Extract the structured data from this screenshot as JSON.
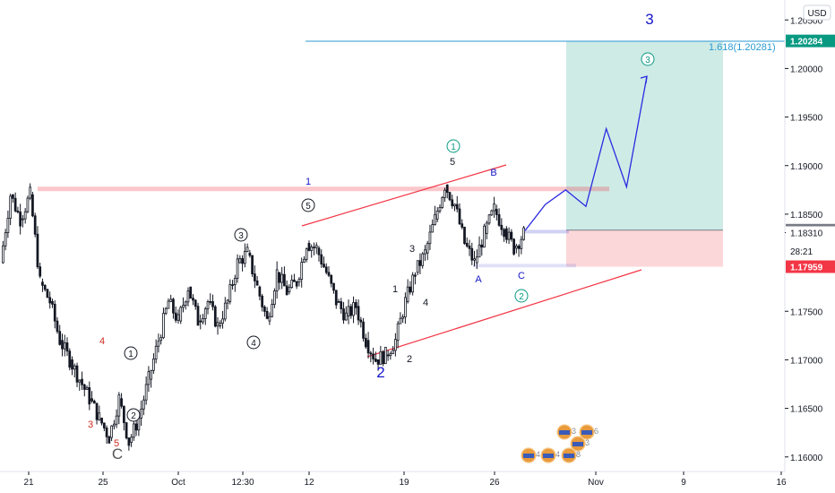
{
  "currency": "USD",
  "chart_data": {
    "type": "candlestick",
    "ylim": [
      1.1585,
      1.2065
    ],
    "x_ticks": [
      "21",
      "25",
      "Oct",
      "12:30",
      "12",
      "19",
      "26",
      "Nov",
      "9",
      "16"
    ],
    "y_ticks": [
      "1.20500",
      "1.20000",
      "1.19500",
      "1.19000",
      "1.18500",
      "1.18310",
      "1.17500",
      "1.17000",
      "1.16500",
      "1.16000"
    ],
    "price_tags": [
      {
        "label": "1.20284",
        "value": 1.20284,
        "color": "#089981"
      },
      {
        "label": "1.18335",
        "value": 1.18335,
        "color": "#787b86"
      },
      {
        "label": "1.18310",
        "value": 1.1831,
        "color": "#ffffff"
      },
      {
        "label": "28:21",
        "value": 1.1812,
        "color": "#ffffff"
      },
      {
        "label": "1.17959",
        "value": 1.17959,
        "color": "#f23645"
      }
    ],
    "fib_label": "1.618(1.20281)",
    "fib_value": 1.20281,
    "resistance_level": 1.1876,
    "target_zone": {
      "top": 1.20284,
      "entry": 1.18335,
      "stop": 1.17959
    },
    "ohlc_path": [
      [
        1.18,
        1.187
      ],
      [
        1.187,
        1.1845
      ],
      [
        1.1845,
        1.187
      ],
      [
        1.187,
        1.178
      ],
      [
        1.178,
        1.176
      ],
      [
        1.176,
        1.172
      ],
      [
        1.172,
        1.17
      ],
      [
        1.17,
        1.168
      ],
      [
        1.168,
        1.166
      ],
      [
        1.166,
        1.164
      ],
      [
        1.164,
        1.162
      ],
      [
        1.162,
        1.166
      ],
      [
        1.166,
        1.1615
      ],
      [
        1.1615,
        1.164
      ],
      [
        1.164,
        1.168
      ],
      [
        1.168,
        1.172
      ],
      [
        1.172,
        1.176
      ],
      [
        1.176,
        1.174
      ],
      [
        1.174,
        1.1775
      ],
      [
        1.1775,
        1.174
      ],
      [
        1.174,
        1.176
      ],
      [
        1.176,
        1.1735
      ],
      [
        1.1735,
        1.176
      ],
      [
        1.176,
        1.18
      ],
      [
        1.18,
        1.181
      ],
      [
        1.181,
        1.1775
      ],
      [
        1.1775,
        1.174
      ],
      [
        1.174,
        1.179
      ],
      [
        1.179,
        1.177
      ],
      [
        1.177,
        1.178
      ],
      [
        1.178,
        1.182
      ],
      [
        1.182,
        1.1815
      ],
      [
        1.1815,
        1.179
      ],
      [
        1.179,
        1.176
      ],
      [
        1.176,
        1.1745
      ],
      [
        1.1745,
        1.1755
      ],
      [
        1.1755,
        1.172
      ],
      [
        1.172,
        1.17
      ],
      [
        1.17,
        1.1705
      ],
      [
        1.1705,
        1.172
      ],
      [
        1.172,
        1.176
      ],
      [
        1.176,
        1.179
      ],
      [
        1.179,
        1.181
      ],
      [
        1.181,
        1.1845
      ],
      [
        1.1845,
        1.188
      ],
      [
        1.188,
        1.186
      ],
      [
        1.186,
        1.182
      ],
      [
        1.182,
        1.18
      ],
      [
        1.18,
        1.183
      ],
      [
        1.183,
        1.1855
      ],
      [
        1.1855,
        1.1835
      ],
      [
        1.1835,
        1.1815
      ],
      [
        1.1815,
        1.183
      ]
    ],
    "projection_path": [
      [
        1.1833,
        1.186
      ],
      [
        1.186,
        1.1875
      ],
      [
        1.1875,
        1.1858
      ],
      [
        1.1858,
        1.1938
      ],
      [
        1.1938,
        1.1878
      ],
      [
        1.1878,
        1.1992
      ]
    ]
  },
  "wave_labels": [
    {
      "text": "3",
      "style": "big",
      "color": "#1515c8",
      "x": 725,
      "y": 27
    },
    {
      "text": "1",
      "style": "plain",
      "color": "#1515c8",
      "x": 344,
      "y": 206
    },
    {
      "text": "2",
      "style": "big",
      "color": "#1515c8",
      "x": 425,
      "y": 421
    },
    {
      "text": "5",
      "style": "plain",
      "color": "#d12b1f",
      "x": 130,
      "y": 498
    },
    {
      "text": "C",
      "style": "big",
      "color": "#555555",
      "x": 131,
      "y": 512
    },
    {
      "text": "4",
      "style": "plain",
      "color": "#d12b1f",
      "x": 114,
      "y": 384
    },
    {
      "text": "3",
      "style": "plain",
      "color": "#d12b1f",
      "x": 101,
      "y": 477
    },
    {
      "text": "5",
      "style": "plain",
      "color": "#131722",
      "x": 505,
      "y": 184
    },
    {
      "text": "B",
      "style": "plain",
      "color": "#1515c8",
      "x": 551,
      "y": 196
    },
    {
      "text": "A",
      "style": "plain",
      "color": "#1515c8",
      "x": 534,
      "y": 315
    },
    {
      "text": "C",
      "style": "plain",
      "color": "#1515c8",
      "x": 582,
      "y": 311
    },
    {
      "text": "3",
      "style": "plain",
      "color": "#131722",
      "x": 460,
      "y": 281
    },
    {
      "text": "1",
      "style": "plain",
      "color": "#131722",
      "x": 441,
      "y": 326
    },
    {
      "text": "4",
      "style": "plain",
      "color": "#131722",
      "x": 475,
      "y": 341
    },
    {
      "text": "2",
      "style": "plain",
      "color": "#131722",
      "x": 457,
      "y": 404
    }
  ],
  "circled_labels": [
    {
      "text": "1",
      "color": "#131722",
      "x": 146,
      "y": 394
    },
    {
      "text": "2",
      "color": "#131722",
      "x": 149,
      "y": 463
    },
    {
      "text": "3",
      "color": "#131722",
      "x": 269,
      "y": 262
    },
    {
      "text": "4",
      "color": "#131722",
      "x": 283,
      "y": 382
    },
    {
      "text": "5",
      "color": "#131722",
      "x": 344,
      "y": 229
    },
    {
      "text": "1",
      "color": "#089981",
      "x": 506,
      "y": 163
    },
    {
      "text": "2",
      "color": "#089981",
      "x": 582,
      "y": 330
    },
    {
      "text": "3",
      "color": "#089981",
      "x": 723,
      "y": 66
    }
  ],
  "event_markers": [
    {
      "text": "4"
    },
    {
      "text": "4"
    },
    {
      "text": "8"
    },
    {
      "text": "3"
    },
    {
      "text": "3"
    },
    {
      "text": "6"
    }
  ]
}
